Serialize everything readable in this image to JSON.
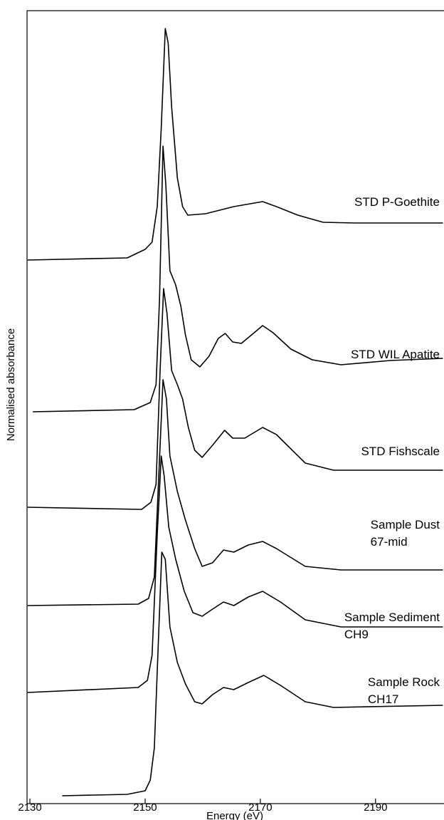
{
  "chart_data": {
    "type": "line",
    "x_label": "Energy (eV)",
    "y_label": "Normalised absorbance",
    "xlim": [
      2129.5,
      2201.7
    ],
    "xticks": [
      2130,
      2150,
      2170,
      2190
    ],
    "ylim": [
      0,
      11.13
    ],
    "color": "#000000",
    "series": [
      {
        "name": "STD P-Goethite",
        "x": [
          2129.6,
          2146.9,
          2150.0,
          2151.2,
          2152.1,
          2152.8,
          2153.5,
          2154.0,
          2154.6,
          2155.6,
          2156.5,
          2157.4,
          2160.5,
          2165.4,
          2170.4,
          2172.8,
          2176.5,
          2180.9,
          2186.4,
          2201.7
        ],
        "values": [
          7.63,
          7.66,
          7.78,
          7.88,
          8.38,
          9.48,
          10.88,
          10.68,
          9.78,
          8.78,
          8.38,
          8.26,
          8.28,
          8.38,
          8.45,
          8.38,
          8.26,
          8.16,
          8.15,
          8.15
        ]
      },
      {
        "name": "STD WIL Apatite",
        "x": [
          2130.5,
          2148.1,
          2150.9,
          2151.9,
          2152.5,
          2153.1,
          2153.6,
          2154.3,
          2155.3,
          2156.2,
          2157.0,
          2158.0,
          2159.5,
          2161.1,
          2162.7,
          2163.9,
          2165.2,
          2166.7,
          2168.5,
          2170.4,
          2172.2,
          2175.3,
          2179.0,
          2184.0,
          2192.6,
          2201.7
        ],
        "values": [
          5.5,
          5.53,
          5.63,
          5.88,
          7.08,
          9.23,
          8.68,
          7.48,
          7.28,
          6.98,
          6.58,
          6.23,
          6.13,
          6.28,
          6.53,
          6.6,
          6.48,
          6.46,
          6.58,
          6.71,
          6.61,
          6.38,
          6.23,
          6.16,
          6.22,
          6.25
        ]
      },
      {
        "name": "STD Fishscale",
        "x": [
          2129.6,
          2149.4,
          2151.0,
          2151.9,
          2152.6,
          2153.2,
          2153.8,
          2154.6,
          2155.6,
          2156.5,
          2157.5,
          2158.6,
          2159.9,
          2161.7,
          2163.8,
          2165.2,
          2167.3,
          2170.4,
          2172.8,
          2177.8,
          2182.7,
          2192.6,
          2201.7
        ],
        "values": [
          4.16,
          4.13,
          4.23,
          4.48,
          6.08,
          7.23,
          6.88,
          6.08,
          5.88,
          5.68,
          5.28,
          4.96,
          4.86,
          5.03,
          5.24,
          5.13,
          5.13,
          5.28,
          5.18,
          4.78,
          4.68,
          4.68,
          4.68
        ]
      },
      {
        "name": "Sample Dust\n67-mid",
        "x": [
          2129.6,
          2148.8,
          2150.6,
          2151.6,
          2152.3,
          2153.1,
          2153.7,
          2154.3,
          2155.6,
          2157.0,
          2158.6,
          2159.9,
          2161.7,
          2163.6,
          2165.4,
          2167.9,
          2170.4,
          2172.8,
          2177.8,
          2184.0,
          2201.7
        ],
        "values": [
          2.78,
          2.8,
          2.88,
          3.18,
          4.48,
          5.95,
          5.68,
          4.88,
          4.38,
          3.98,
          3.58,
          3.33,
          3.38,
          3.56,
          3.53,
          3.63,
          3.68,
          3.58,
          3.33,
          3.28,
          3.28
        ]
      },
      {
        "name": "Sample Sediment\nCH9",
        "x": [
          2129.6,
          2148.8,
          2150.4,
          2151.2,
          2152.1,
          2152.8,
          2153.3,
          2154.1,
          2155.3,
          2156.8,
          2158.3,
          2159.9,
          2161.7,
          2163.6,
          2165.4,
          2167.9,
          2170.4,
          2173.5,
          2177.8,
          2184.0,
          2201.7
        ],
        "values": [
          1.56,
          1.63,
          1.73,
          2.08,
          3.78,
          4.88,
          4.6,
          3.88,
          3.43,
          2.98,
          2.68,
          2.63,
          2.73,
          2.83,
          2.78,
          2.9,
          2.98,
          2.83,
          2.58,
          2.48,
          2.48
        ]
      },
      {
        "name": "Sample Rock\nCH17",
        "x": [
          2135.6,
          2146.9,
          2150.0,
          2150.9,
          2151.6,
          2152.3,
          2152.9,
          2153.5,
          2154.3,
          2155.6,
          2157.0,
          2158.6,
          2159.9,
          2161.7,
          2163.6,
          2165.4,
          2167.9,
          2170.6,
          2173.5,
          2177.8,
          2182.7,
          2201.7
        ],
        "values": [
          0.11,
          0.13,
          0.18,
          0.33,
          0.78,
          2.28,
          3.53,
          3.43,
          2.48,
          1.98,
          1.68,
          1.43,
          1.4,
          1.53,
          1.63,
          1.6,
          1.7,
          1.8,
          1.66,
          1.43,
          1.35,
          1.38
        ]
      }
    ]
  }
}
